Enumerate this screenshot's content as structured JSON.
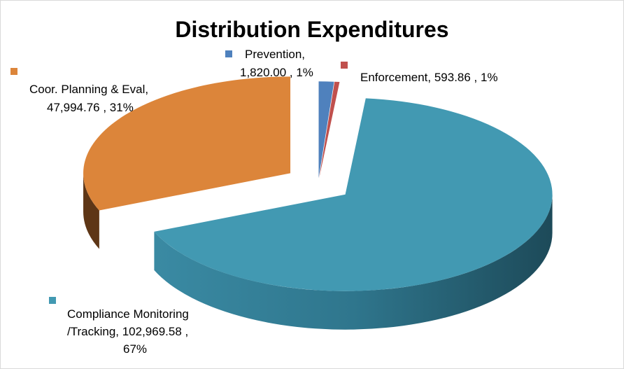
{
  "chart_data": {
    "type": "pie",
    "title": "Distribution Expenditures",
    "slices": [
      {
        "name": "Prevention",
        "value": 1820.0,
        "value_label": "1,820.00",
        "percent": "1%",
        "color": "#4f81bd"
      },
      {
        "name": "Enforcement",
        "value": 593.86,
        "value_label": "593.86",
        "percent": "1%",
        "color": "#c0504d"
      },
      {
        "name": "Compliance Monitoring /Tracking",
        "value": 102969.58,
        "value_label": "102,969.58",
        "percent": "67%",
        "color": "#4299b2"
      },
      {
        "name": "Coor. Planning & Eval",
        "value": 47994.76,
        "value_label": "47,994.76",
        "percent": "31%",
        "color": "#dc853a"
      }
    ],
    "style": "3d-exploded",
    "legend": "none"
  },
  "labels": {
    "prevention_l1": "Prevention,",
    "prevention_l2": "1,820.00 , 1%",
    "enforcement": "Enforcement, 593.86 , 1%",
    "coor_l1": "Coor. Planning & Eval,",
    "coor_l2": "47,994.76 , 31%",
    "comp_l1": "Compliance Monitoring",
    "comp_l2": "/Tracking, 102,969.58 ,",
    "comp_l3": "67%"
  }
}
